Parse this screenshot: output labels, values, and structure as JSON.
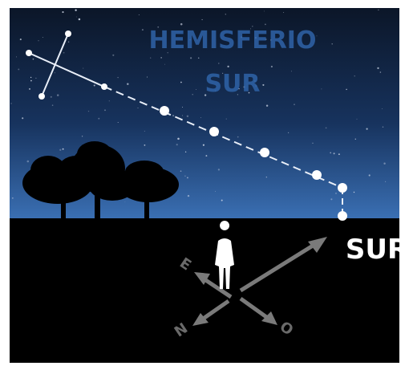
{
  "title": {
    "line1": "HEMISFERIO",
    "line2": "SUR"
  },
  "direction_label": "SUR",
  "compass": {
    "east": "E",
    "north": "N",
    "west": "O"
  }
}
